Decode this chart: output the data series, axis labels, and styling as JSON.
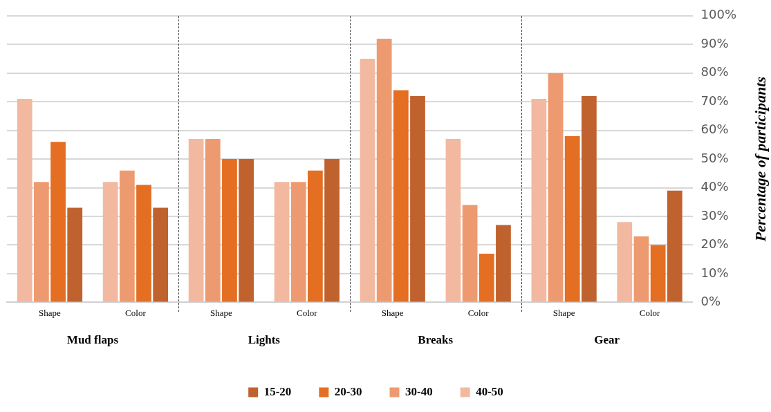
{
  "chart_data": {
    "type": "bar",
    "categories": [
      "Shape",
      "Color",
      "Shape",
      "Color",
      "Shape",
      "Color",
      "Shape",
      "Color"
    ],
    "series": [
      {
        "name": "40-50",
        "color": "#f2b9a0",
        "values": [
          71,
          42,
          57,
          42,
          85,
          57,
          71,
          28
        ]
      },
      {
        "name": "30-40",
        "color": "#ee9a70",
        "values": [
          42,
          46,
          57,
          42,
          92,
          34,
          80,
          23
        ]
      },
      {
        "name": "20-30",
        "color": "#e46e22",
        "values": [
          56,
          41,
          50,
          46,
          74,
          17,
          58,
          20
        ]
      },
      {
        "name": "15-20",
        "color": "#c0622e",
        "values": [
          33,
          33,
          50,
          50,
          72,
          27,
          72,
          39
        ]
      }
    ],
    "ylabel": "Percentage of participants",
    "ylim": [
      0,
      100
    ],
    "yticks": [
      {
        "value": 0,
        "label": "0%"
      },
      {
        "value": 10,
        "label": "10%"
      },
      {
        "value": 20,
        "label": "20%"
      },
      {
        "value": 30,
        "label": "30%"
      },
      {
        "value": 40,
        "label": "40%"
      },
      {
        "value": 50,
        "label": "50%"
      },
      {
        "value": 60,
        "label": "60%"
      },
      {
        "value": 70,
        "label": "70%"
      },
      {
        "value": 80,
        "label": "80%"
      },
      {
        "value": 90,
        "label": "90%"
      },
      {
        "value": 100,
        "label": "100%"
      }
    ],
    "annotations": [
      "Mud flaps",
      "Lights",
      "Breaks",
      "Gear"
    ],
    "grid": "y",
    "legend": "bottom"
  }
}
